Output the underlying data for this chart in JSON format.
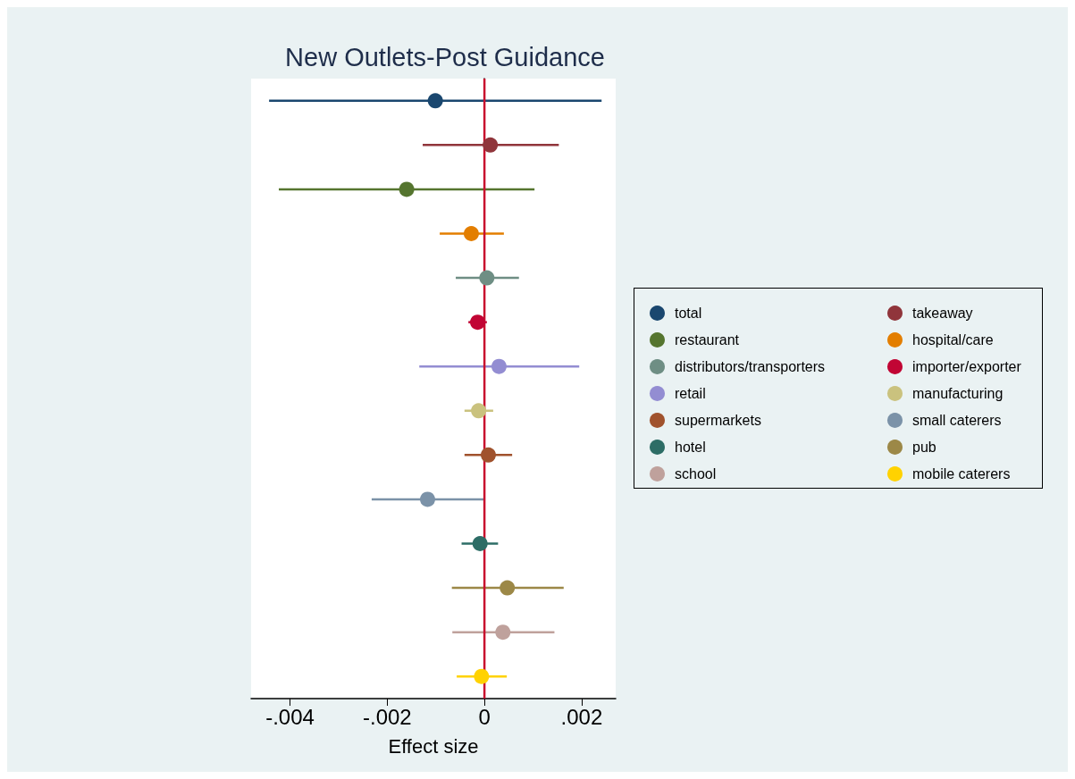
{
  "chart_data": {
    "type": "scatter",
    "orientation": "horizontal",
    "title": "New Outlets-Post Guidance",
    "xlabel": "Effect size",
    "categories": [
      null,
      null,
      null,
      null,
      null,
      null,
      null,
      null,
      null,
      null,
      null,
      null,
      null,
      null
    ],
    "xlim": [
      -0.0048,
      0.0027
    ],
    "xticks": [
      {
        "value": -0.004,
        "label": "-.004"
      },
      {
        "value": -0.002,
        "label": "-.002"
      },
      0,
      {
        "value": 0.002,
        "label": ".002"
      }
    ],
    "grid": false,
    "legend": "right",
    "marker": "circle",
    "tick_labels": "x",
    "ref_lines": [
      {
        "axis": "x",
        "value": 0,
        "color": "#c8102e"
      }
    ],
    "series": [
      {
        "name": "total",
        "color": "#1a476f",
        "values": [
          -0.00101,
          null,
          null,
          null,
          null,
          null,
          null,
          null,
          null,
          null,
          null,
          null,
          null,
          null
        ],
        "errors": [
          [
            -0.00443,
            0.00241
          ],
          null,
          null,
          null,
          null,
          null,
          null,
          null,
          null,
          null,
          null,
          null,
          null,
          null
        ]
      },
      {
        "name": "takeaway",
        "color": "#90353b",
        "values": [
          null,
          0.00012,
          null,
          null,
          null,
          null,
          null,
          null,
          null,
          null,
          null,
          null,
          null,
          null
        ],
        "errors": [
          null,
          [
            -0.00127,
            0.00153
          ],
          null,
          null,
          null,
          null,
          null,
          null,
          null,
          null,
          null,
          null,
          null,
          null
        ]
      },
      {
        "name": "restaurant",
        "color": "#55752f",
        "values": [
          null,
          null,
          -0.0016,
          null,
          null,
          null,
          null,
          null,
          null,
          null,
          null,
          null,
          null,
          null
        ],
        "errors": [
          null,
          null,
          [
            -0.00423,
            0.00103
          ],
          null,
          null,
          null,
          null,
          null,
          null,
          null,
          null,
          null,
          null,
          null
        ]
      },
      {
        "name": "hospital/care",
        "color": "#e37e00",
        "values": [
          null,
          null,
          null,
          -0.00027,
          null,
          null,
          null,
          null,
          null,
          null,
          null,
          null,
          null,
          null
        ],
        "errors": [
          null,
          null,
          null,
          [
            -0.00092,
            0.0004
          ],
          null,
          null,
          null,
          null,
          null,
          null,
          null,
          null,
          null,
          null
        ]
      },
      {
        "name": "distributors/transporters",
        "color": "#6e8e84",
        "values": [
          null,
          null,
          null,
          null,
          5e-05,
          null,
          null,
          null,
          null,
          null,
          null,
          null,
          null,
          null
        ],
        "errors": [
          null,
          null,
          null,
          null,
          [
            -0.00059,
            0.00071
          ],
          null,
          null,
          null,
          null,
          null,
          null,
          null,
          null,
          null
        ]
      },
      {
        "name": "importer/exporter",
        "color": "#c10534",
        "values": [
          null,
          null,
          null,
          null,
          null,
          -0.00014,
          null,
          null,
          null,
          null,
          null,
          null,
          null,
          null
        ],
        "errors": [
          null,
          null,
          null,
          null,
          null,
          [
            -0.00033,
            5e-05
          ],
          null,
          null,
          null,
          null,
          null,
          null,
          null,
          null
        ]
      },
      {
        "name": "retail",
        "color": "#938dd2",
        "values": [
          null,
          null,
          null,
          null,
          null,
          null,
          0.0003,
          null,
          null,
          null,
          null,
          null,
          null,
          null
        ],
        "errors": [
          null,
          null,
          null,
          null,
          null,
          null,
          [
            -0.00134,
            0.00195
          ],
          null,
          null,
          null,
          null,
          null,
          null,
          null
        ]
      },
      {
        "name": "manufacturing",
        "color": "#cac27e",
        "values": [
          null,
          null,
          null,
          null,
          null,
          null,
          null,
          -0.00012,
          null,
          null,
          null,
          null,
          null,
          null
        ],
        "errors": [
          null,
          null,
          null,
          null,
          null,
          null,
          null,
          [
            -0.00041,
            0.00018
          ],
          null,
          null,
          null,
          null,
          null,
          null
        ]
      },
      {
        "name": "supermarkets",
        "color": "#a0522d",
        "values": [
          null,
          null,
          null,
          null,
          null,
          null,
          null,
          null,
          8e-05,
          null,
          null,
          null,
          null,
          null
        ],
        "errors": [
          null,
          null,
          null,
          null,
          null,
          null,
          null,
          null,
          [
            -0.00041,
            0.00057
          ],
          null,
          null,
          null,
          null,
          null
        ]
      },
      {
        "name": "small caterers",
        "color": "#7b92a8",
        "values": [
          null,
          null,
          null,
          null,
          null,
          null,
          null,
          null,
          null,
          -0.00117,
          null,
          null,
          null,
          null
        ],
        "errors": [
          null,
          null,
          null,
          null,
          null,
          null,
          null,
          null,
          null,
          [
            -0.00232,
            -2e-05
          ],
          null,
          null,
          null,
          null
        ]
      },
      {
        "name": "hotel",
        "color": "#2d6d66",
        "values": [
          null,
          null,
          null,
          null,
          null,
          null,
          null,
          null,
          null,
          null,
          -9e-05,
          null,
          null,
          null
        ],
        "errors": [
          null,
          null,
          null,
          null,
          null,
          null,
          null,
          null,
          null,
          null,
          [
            -0.00047,
            0.00028
          ],
          null,
          null,
          null
        ]
      },
      {
        "name": "pub",
        "color": "#9c8847",
        "values": [
          null,
          null,
          null,
          null,
          null,
          null,
          null,
          null,
          null,
          null,
          null,
          0.00047,
          null,
          null
        ],
        "errors": [
          null,
          null,
          null,
          null,
          null,
          null,
          null,
          null,
          null,
          null,
          null,
          [
            -0.00067,
            0.00163
          ],
          null,
          null
        ]
      },
      {
        "name": "school",
        "color": "#bfa19c",
        "values": [
          null,
          null,
          null,
          null,
          null,
          null,
          null,
          null,
          null,
          null,
          null,
          null,
          0.00038,
          null
        ],
        "errors": [
          null,
          null,
          null,
          null,
          null,
          null,
          null,
          null,
          null,
          null,
          null,
          null,
          [
            -0.00066,
            0.00144
          ],
          null
        ]
      },
      {
        "name": "mobile caterers",
        "color": "#ffd200",
        "values": [
          null,
          null,
          null,
          null,
          null,
          null,
          null,
          null,
          null,
          null,
          null,
          null,
          null,
          -6e-05
        ],
        "errors": [
          null,
          null,
          null,
          null,
          null,
          null,
          null,
          null,
          null,
          null,
          null,
          null,
          null,
          [
            -0.00057,
            0.00046
          ]
        ]
      }
    ]
  }
}
